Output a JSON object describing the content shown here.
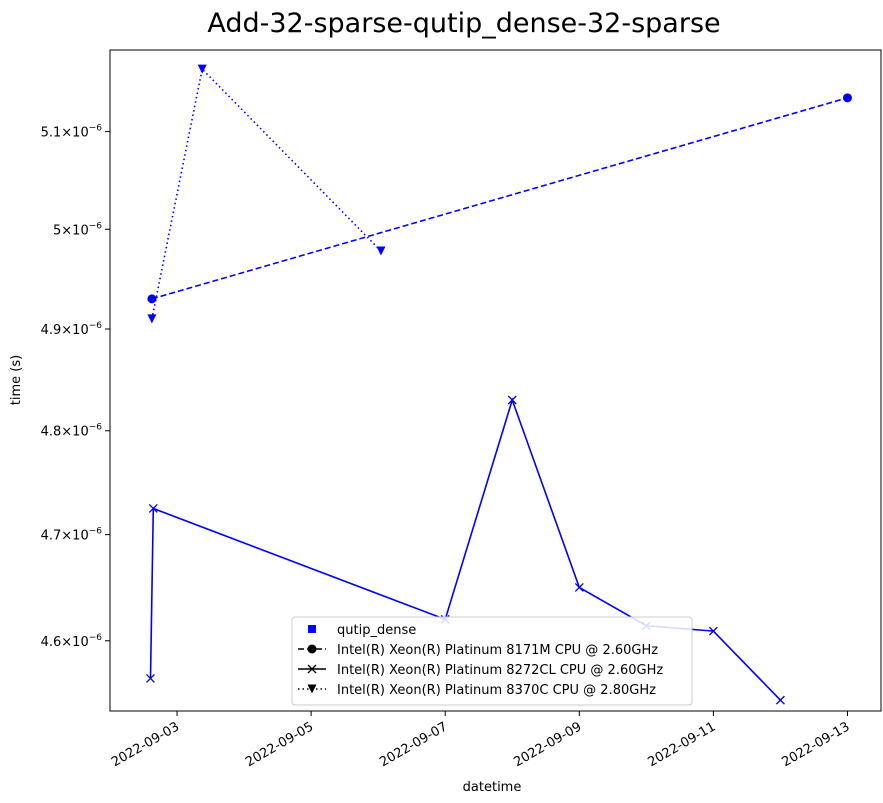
{
  "chart_data": {
    "type": "line",
    "title": "Add-32-sparse-qutip_dense-32-sparse",
    "xlabel": "datetime",
    "ylabel": "time (s)",
    "xlim": [
      "2022-09-02T00:00",
      "2022-09-13T12:00"
    ],
    "ylim": [
      4.535e-06,
      5.185e-06
    ],
    "yscale": "log",
    "grid": false,
    "x_ticks": [
      "2022-09-03",
      "2022-09-05",
      "2022-09-07",
      "2022-09-09",
      "2022-09-11",
      "2022-09-13"
    ],
    "y_ticks": [
      {
        "value": 4.6e-06,
        "mantissa": "4.6",
        "base": "10",
        "exp": "−6"
      },
      {
        "value": 4.7e-06,
        "mantissa": "4.7",
        "base": "10",
        "exp": "−6"
      },
      {
        "value": 4.8e-06,
        "mantissa": "4.8",
        "base": "10",
        "exp": "−6"
      },
      {
        "value": 4.9e-06,
        "mantissa": "4.9",
        "base": "10",
        "exp": "−6"
      },
      {
        "value": 5e-06,
        "mantissa": "5",
        "base": "10",
        "exp": "−6"
      },
      {
        "value": 5.1e-06,
        "mantissa": "5.1",
        "base": "10",
        "exp": "−6"
      }
    ],
    "series": [
      {
        "name": "Intel(R) Xeon(R) Platinum 8171M CPU @ 2.60GHz",
        "color": "#0000ff",
        "linestyle": "dashed",
        "marker": "circle",
        "points": [
          {
            "x": "2022-09-02T15:00",
            "y": 4.93e-06
          },
          {
            "x": "2022-09-13T00:00",
            "y": 5.135e-06
          }
        ]
      },
      {
        "name": "Intel(R) Xeon(R) Platinum 8272CL CPU @ 2.60GHz",
        "color": "#0000ff",
        "linestyle": "solid",
        "marker": "x",
        "points": [
          {
            "x": "2022-09-02T14:30",
            "y": 4.565e-06
          },
          {
            "x": "2022-09-02T15:30",
            "y": 4.725e-06
          },
          {
            "x": "2022-09-07T00:00",
            "y": 4.62e-06
          },
          {
            "x": "2022-09-08T00:00",
            "y": 4.83e-06
          },
          {
            "x": "2022-09-09T00:00",
            "y": 4.65e-06
          },
          {
            "x": "2022-09-10T00:00",
            "y": 4.614e-06
          },
          {
            "x": "2022-09-11T00:00",
            "y": 4.609e-06
          },
          {
            "x": "2022-09-12T00:00",
            "y": 4.545e-06
          }
        ]
      },
      {
        "name": "Intel(R) Xeon(R) Platinum 8370C CPU @ 2.80GHz",
        "color": "#0000ff",
        "linestyle": "dotted",
        "marker": "triangle-down",
        "points": [
          {
            "x": "2022-09-02T15:00",
            "y": 4.91e-06
          },
          {
            "x": "2022-09-03T09:00",
            "y": 5.165e-06
          },
          {
            "x": "2022-09-06T01:00",
            "y": 4.978e-06
          }
        ]
      }
    ],
    "legend": {
      "placement": "lower center",
      "entries": [
        {
          "label": "qutip_dense",
          "style": "square-marker",
          "color": "#0000ff"
        },
        {
          "label": "Intel(R) Xeon(R) Platinum 8171M CPU @ 2.60GHz",
          "style": "dashed-circle",
          "color": "#000000"
        },
        {
          "label": "Intel(R) Xeon(R) Platinum 8272CL CPU @ 2.60GHz",
          "style": "solid-x",
          "color": "#000000"
        },
        {
          "label": "Intel(R) Xeon(R) Platinum 8370C CPU @ 2.80GHz",
          "style": "dotted-triangle",
          "color": "#000000"
        }
      ]
    }
  }
}
